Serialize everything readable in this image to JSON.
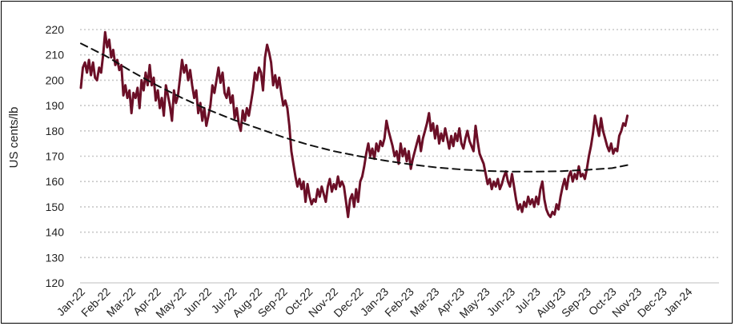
{
  "chart_data": {
    "type": "line",
    "ylabel": "US cents/lb",
    "xlabel": "",
    "title": "",
    "ylim": [
      120,
      220
    ],
    "yticks": [
      120,
      130,
      140,
      150,
      160,
      170,
      180,
      190,
      200,
      210,
      220
    ],
    "x_tick_labels": [
      "Jan-22",
      "Feb-22",
      "Mar-22",
      "Apr-22",
      "May-22",
      "Jun-22",
      "Jul-22",
      "Aug-22",
      "Sep-22",
      "Oct-22",
      "Nov-22",
      "Dec-22",
      "Jan-23",
      "Feb-23",
      "Mar-23",
      "Apr-23",
      "May-23",
      "Jun-23",
      "Jul-23",
      "Aug-23",
      "Sep-23",
      "Oct-23",
      "Nov-23",
      "Dec-23",
      "Jan-24"
    ],
    "grid": "horizontal dotted",
    "series": [
      {
        "style": "solid",
        "color": "#6b0f27",
        "points": [
          [
            0.0,
            197
          ],
          [
            0.08,
            205
          ],
          [
            0.16,
            207
          ],
          [
            0.24,
            203
          ],
          [
            0.32,
            208
          ],
          [
            0.4,
            202
          ],
          [
            0.48,
            207
          ],
          [
            0.56,
            201
          ],
          [
            0.64,
            200
          ],
          [
            0.72,
            205
          ],
          [
            0.8,
            203
          ],
          [
            0.88,
            210
          ],
          [
            0.96,
            219
          ],
          [
            1.04,
            213
          ],
          [
            1.12,
            216
          ],
          [
            1.2,
            209
          ],
          [
            1.28,
            212
          ],
          [
            1.36,
            206
          ],
          [
            1.44,
            208
          ],
          [
            1.52,
            204
          ],
          [
            1.6,
            206
          ],
          [
            1.68,
            194
          ],
          [
            1.76,
            198
          ],
          [
            1.84,
            193
          ],
          [
            1.92,
            196
          ],
          [
            2.0,
            187
          ],
          [
            2.08,
            195
          ],
          [
            2.16,
            193
          ],
          [
            2.24,
            197
          ],
          [
            2.32,
            189
          ],
          [
            2.4,
            200
          ],
          [
            2.48,
            196
          ],
          [
            2.56,
            203
          ],
          [
            2.64,
            198
          ],
          [
            2.72,
            206
          ],
          [
            2.8,
            198
          ],
          [
            2.88,
            201
          ],
          [
            2.96,
            192
          ],
          [
            3.04,
            196
          ],
          [
            3.12,
            189
          ],
          [
            3.2,
            193
          ],
          [
            3.28,
            186
          ],
          [
            3.36,
            198
          ],
          [
            3.44,
            194
          ],
          [
            3.52,
            190
          ],
          [
            3.6,
            184
          ],
          [
            3.68,
            196
          ],
          [
            3.76,
            191
          ],
          [
            3.84,
            194
          ],
          [
            3.92,
            201
          ],
          [
            4.0,
            208
          ],
          [
            4.08,
            203
          ],
          [
            4.16,
            206
          ],
          [
            4.24,
            200
          ],
          [
            4.32,
            204
          ],
          [
            4.4,
            198
          ],
          [
            4.48,
            193
          ],
          [
            4.56,
            196
          ],
          [
            4.64,
            187
          ],
          [
            4.72,
            191
          ],
          [
            4.8,
            184
          ],
          [
            4.88,
            189
          ],
          [
            4.96,
            182
          ],
          [
            5.04,
            186
          ],
          [
            5.12,
            190
          ],
          [
            5.2,
            198
          ],
          [
            5.28,
            195
          ],
          [
            5.36,
            200
          ],
          [
            5.44,
            205
          ],
          [
            5.52,
            199
          ],
          [
            5.6,
            203
          ],
          [
            5.68,
            195
          ],
          [
            5.76,
            193
          ],
          [
            5.84,
            197
          ],
          [
            5.92,
            191
          ],
          [
            6.0,
            194
          ],
          [
            6.08,
            185
          ],
          [
            6.16,
            189
          ],
          [
            6.24,
            183
          ],
          [
            6.32,
            180
          ],
          [
            6.4,
            188
          ],
          [
            6.48,
            184
          ],
          [
            6.56,
            189
          ],
          [
            6.64,
            186
          ],
          [
            6.72,
            191
          ],
          [
            6.8,
            196
          ],
          [
            6.88,
            203
          ],
          [
            6.96,
            200
          ],
          [
            7.04,
            205
          ],
          [
            7.12,
            203
          ],
          [
            7.2,
            196
          ],
          [
            7.28,
            209
          ],
          [
            7.36,
            214
          ],
          [
            7.44,
            211
          ],
          [
            7.52,
            207
          ],
          [
            7.6,
            198
          ],
          [
            7.68,
            202
          ],
          [
            7.76,
            197
          ],
          [
            7.84,
            201
          ],
          [
            7.92,
            195
          ],
          [
            8.0,
            190
          ],
          [
            8.08,
            192
          ],
          [
            8.16,
            189
          ],
          [
            8.24,
            182
          ],
          [
            8.32,
            172
          ],
          [
            8.4,
            167
          ],
          [
            8.48,
            162
          ],
          [
            8.56,
            158
          ],
          [
            8.64,
            161
          ],
          [
            8.72,
            157
          ],
          [
            8.8,
            160
          ],
          [
            8.88,
            152
          ],
          [
            8.96,
            159
          ],
          [
            9.04,
            154
          ],
          [
            9.12,
            151
          ],
          [
            9.2,
            153
          ],
          [
            9.28,
            152
          ],
          [
            9.36,
            157
          ],
          [
            9.44,
            154
          ],
          [
            9.52,
            158
          ],
          [
            9.6,
            155
          ],
          [
            9.68,
            152
          ],
          [
            9.76,
            158
          ],
          [
            9.84,
            161
          ],
          [
            9.92,
            156
          ],
          [
            10.0,
            159
          ],
          [
            10.08,
            157
          ],
          [
            10.16,
            162
          ],
          [
            10.24,
            158
          ],
          [
            10.32,
            160
          ],
          [
            10.4,
            158
          ],
          [
            10.48,
            152
          ],
          [
            10.56,
            146
          ],
          [
            10.64,
            153
          ],
          [
            10.72,
            155
          ],
          [
            10.8,
            150
          ],
          [
            10.88,
            157
          ],
          [
            10.96,
            152
          ],
          [
            11.04,
            160
          ],
          [
            11.12,
            162
          ],
          [
            11.2,
            166
          ],
          [
            11.28,
            171
          ],
          [
            11.36,
            175
          ],
          [
            11.44,
            170
          ],
          [
            11.52,
            173
          ],
          [
            11.6,
            169
          ],
          [
            11.68,
            175
          ],
          [
            11.76,
            172
          ],
          [
            11.84,
            176
          ],
          [
            11.92,
            174
          ],
          [
            12.0,
            177
          ],
          [
            12.08,
            184
          ],
          [
            12.16,
            180
          ],
          [
            12.24,
            177
          ],
          [
            12.32,
            174
          ],
          [
            12.4,
            170
          ],
          [
            12.48,
            172
          ],
          [
            12.56,
            167
          ],
          [
            12.64,
            175
          ],
          [
            12.72,
            170
          ],
          [
            12.8,
            173
          ],
          [
            12.88,
            168
          ],
          [
            12.96,
            172
          ],
          [
            13.04,
            165
          ],
          [
            13.12,
            169
          ],
          [
            13.2,
            172
          ],
          [
            13.28,
            175
          ],
          [
            13.36,
            178
          ],
          [
            13.44,
            172
          ],
          [
            13.52,
            177
          ],
          [
            13.6,
            180
          ],
          [
            13.68,
            183
          ],
          [
            13.76,
            187
          ],
          [
            13.84,
            180
          ],
          [
            13.92,
            183
          ],
          [
            14.0,
            177
          ],
          [
            14.08,
            182
          ],
          [
            14.16,
            175
          ],
          [
            14.24,
            179
          ],
          [
            14.32,
            176
          ],
          [
            14.4,
            181
          ],
          [
            14.48,
            177
          ],
          [
            14.56,
            173
          ],
          [
            14.64,
            178
          ],
          [
            14.72,
            174
          ],
          [
            14.8,
            179
          ],
          [
            14.88,
            176
          ],
          [
            14.96,
            181
          ],
          [
            15.04,
            175
          ],
          [
            15.12,
            173
          ],
          [
            15.2,
            177
          ],
          [
            15.28,
            180
          ],
          [
            15.36,
            176
          ],
          [
            15.44,
            174
          ],
          [
            15.52,
            172
          ],
          [
            15.6,
            182
          ],
          [
            15.68,
            176
          ],
          [
            15.76,
            171
          ],
          [
            15.84,
            169
          ],
          [
            15.92,
            167
          ],
          [
            16.0,
            163
          ],
          [
            16.08,
            159
          ],
          [
            16.16,
            161
          ],
          [
            16.24,
            157
          ],
          [
            16.32,
            160
          ],
          [
            16.4,
            158
          ],
          [
            16.48,
            161
          ],
          [
            16.56,
            157
          ],
          [
            16.64,
            159
          ],
          [
            16.72,
            162
          ],
          [
            16.8,
            164
          ],
          [
            16.88,
            160
          ],
          [
            16.96,
            158
          ],
          [
            17.04,
            163
          ],
          [
            17.12,
            158
          ],
          [
            17.2,
            153
          ],
          [
            17.28,
            149
          ],
          [
            17.36,
            151
          ],
          [
            17.44,
            148
          ],
          [
            17.52,
            152
          ],
          [
            17.6,
            150
          ],
          [
            17.68,
            154
          ],
          [
            17.76,
            151
          ],
          [
            17.84,
            153
          ],
          [
            17.92,
            150
          ],
          [
            18.0,
            154
          ],
          [
            18.08,
            151
          ],
          [
            18.16,
            157
          ],
          [
            18.24,
            160
          ],
          [
            18.32,
            153
          ],
          [
            18.4,
            149
          ],
          [
            18.48,
            147
          ],
          [
            18.56,
            146
          ],
          [
            18.64,
            148
          ],
          [
            18.72,
            147
          ],
          [
            18.8,
            151
          ],
          [
            18.88,
            149
          ],
          [
            18.96,
            154
          ],
          [
            19.04,
            158
          ],
          [
            19.12,
            161
          ],
          [
            19.2,
            157
          ],
          [
            19.28,
            162
          ],
          [
            19.36,
            164
          ],
          [
            19.44,
            160
          ],
          [
            19.52,
            163
          ],
          [
            19.6,
            161
          ],
          [
            19.68,
            166
          ],
          [
            19.76,
            162
          ],
          [
            19.84,
            163
          ],
          [
            19.92,
            161
          ],
          [
            20.0,
            165
          ],
          [
            20.08,
            170
          ],
          [
            20.16,
            174
          ],
          [
            20.24,
            179
          ],
          [
            20.32,
            186
          ],
          [
            20.4,
            182
          ],
          [
            20.48,
            178
          ],
          [
            20.56,
            185
          ],
          [
            20.64,
            180
          ],
          [
            20.72,
            177
          ],
          [
            20.8,
            174
          ],
          [
            20.88,
            172
          ],
          [
            20.96,
            175
          ],
          [
            21.04,
            171
          ],
          [
            21.12,
            173
          ],
          [
            21.2,
            172
          ],
          [
            21.28,
            178
          ],
          [
            21.36,
            180
          ],
          [
            21.44,
            183
          ],
          [
            21.52,
            182
          ],
          [
            21.6,
            186
          ]
        ]
      },
      {
        "style": "dashed",
        "color": "#111111",
        "points": [
          [
            0,
            214.5
          ],
          [
            1,
            209.5
          ],
          [
            2,
            203.5
          ],
          [
            3,
            198
          ],
          [
            4,
            193
          ],
          [
            5,
            188.5
          ],
          [
            6,
            184.5
          ],
          [
            7,
            181
          ],
          [
            8,
            177.5
          ],
          [
            9,
            174.5
          ],
          [
            10,
            172
          ],
          [
            11,
            170
          ],
          [
            12,
            168.3
          ],
          [
            13,
            166.8
          ],
          [
            14,
            165.6
          ],
          [
            15,
            164.8
          ],
          [
            16,
            164.2
          ],
          [
            17,
            163.9
          ],
          [
            18,
            163.9
          ],
          [
            19,
            164.1
          ],
          [
            20,
            164.6
          ],
          [
            21,
            165.3
          ],
          [
            21.6,
            166.5
          ]
        ]
      }
    ]
  }
}
